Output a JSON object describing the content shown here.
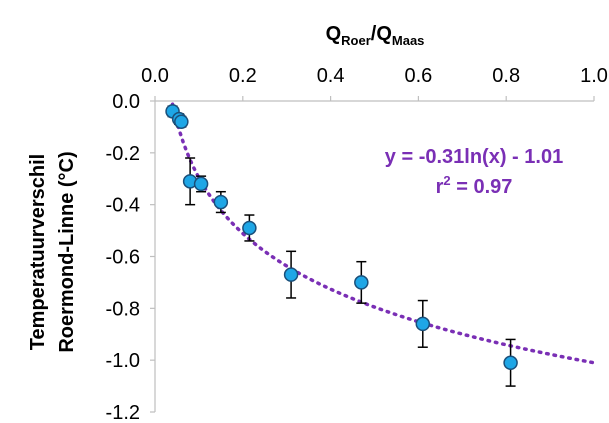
{
  "chart_data": {
    "type": "scatter",
    "xlabel": {
      "main_1": "Q",
      "sub_1": "Roer",
      "sep": "/",
      "main_2": "Q",
      "sub_2": "Maas"
    },
    "ylabel": {
      "line1": "Temperatuurverschil",
      "line2": "Roermond-Linne (°C)"
    },
    "x_ticks": [
      "0.0",
      "0.2",
      "0.4",
      "0.6",
      "0.8",
      "1.0"
    ],
    "y_ticks": [
      "0.0",
      "-0.2",
      "-0.4",
      "-0.6",
      "-0.8",
      "-1.0",
      "-1.2"
    ],
    "xlim": [
      0,
      1.0
    ],
    "ylim": [
      -1.2,
      0.0
    ],
    "x_axis_position": "top",
    "grid": false,
    "points": [
      {
        "x": 0.04,
        "y": -0.04,
        "err": 0.02
      },
      {
        "x": 0.055,
        "y": -0.07,
        "err": 0.02
      },
      {
        "x": 0.06,
        "y": -0.08,
        "err": 0.02
      },
      {
        "x": 0.08,
        "y": -0.31,
        "err": 0.09
      },
      {
        "x": 0.105,
        "y": -0.32,
        "err": 0.03
      },
      {
        "x": 0.15,
        "y": -0.39,
        "err": 0.04
      },
      {
        "x": 0.215,
        "y": -0.49,
        "err": 0.05
      },
      {
        "x": 0.31,
        "y": -0.67,
        "err": 0.09
      },
      {
        "x": 0.47,
        "y": -0.7,
        "err": 0.08
      },
      {
        "x": 0.61,
        "y": -0.86,
        "err": 0.09
      },
      {
        "x": 0.81,
        "y": -1.01,
        "err": 0.09
      }
    ],
    "trendline": {
      "a": -0.31,
      "b": -1.01,
      "x_start": 0.04,
      "x_end": 1.0
    },
    "equation": "y = -0.31ln(x) - 1.01",
    "r2": {
      "base": "r",
      "sup": "2",
      "rest": " = 0.97"
    },
    "colors": {
      "marker_fill": "#1ea6e6",
      "marker_edge": "#1a4f7a",
      "trendline": "#7a2fb5",
      "error_bar": "#000000",
      "axis": "#bfbfbf"
    }
  }
}
